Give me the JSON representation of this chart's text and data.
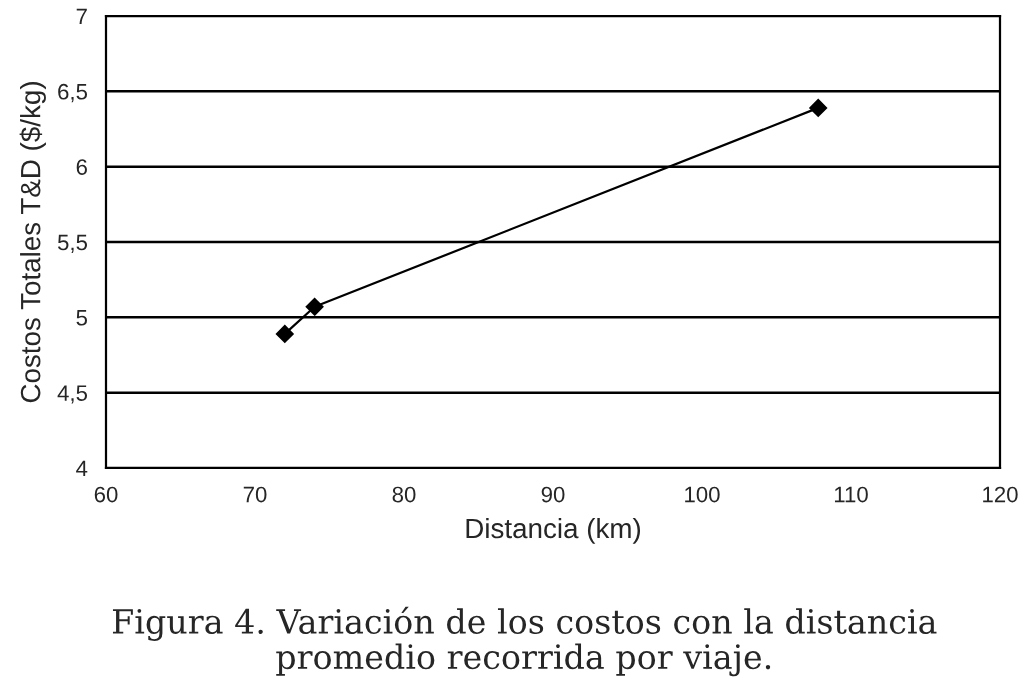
{
  "chart_data": {
    "type": "line",
    "xlabel": "Distancia (km)",
    "ylabel": "Costos Totales T&D ($/kg)",
    "annotations": [
      "Figura 4. Variación de los costos con la distancia\npromedio recorrida por viaje."
    ],
    "x": [
      72,
      74,
      107.8
    ],
    "series": [
      {
        "color": "#000000",
        "values": [
          4.89,
          5.07,
          6.39
        ]
      }
    ],
    "xlim": [
      60,
      120
    ],
    "xticks": [
      60,
      70,
      80,
      90,
      100,
      110,
      120
    ],
    "ylim": [
      4,
      7
    ],
    "yticks": [
      4,
      {
        "value": 4.5,
        "label": "4,5"
      },
      5,
      {
        "value": 5.5,
        "label": "5,5"
      },
      6,
      {
        "value": 6.5,
        "label": "6,5"
      },
      7
    ],
    "grid": "y",
    "marker": "diamond",
    "line_style": "solid"
  }
}
